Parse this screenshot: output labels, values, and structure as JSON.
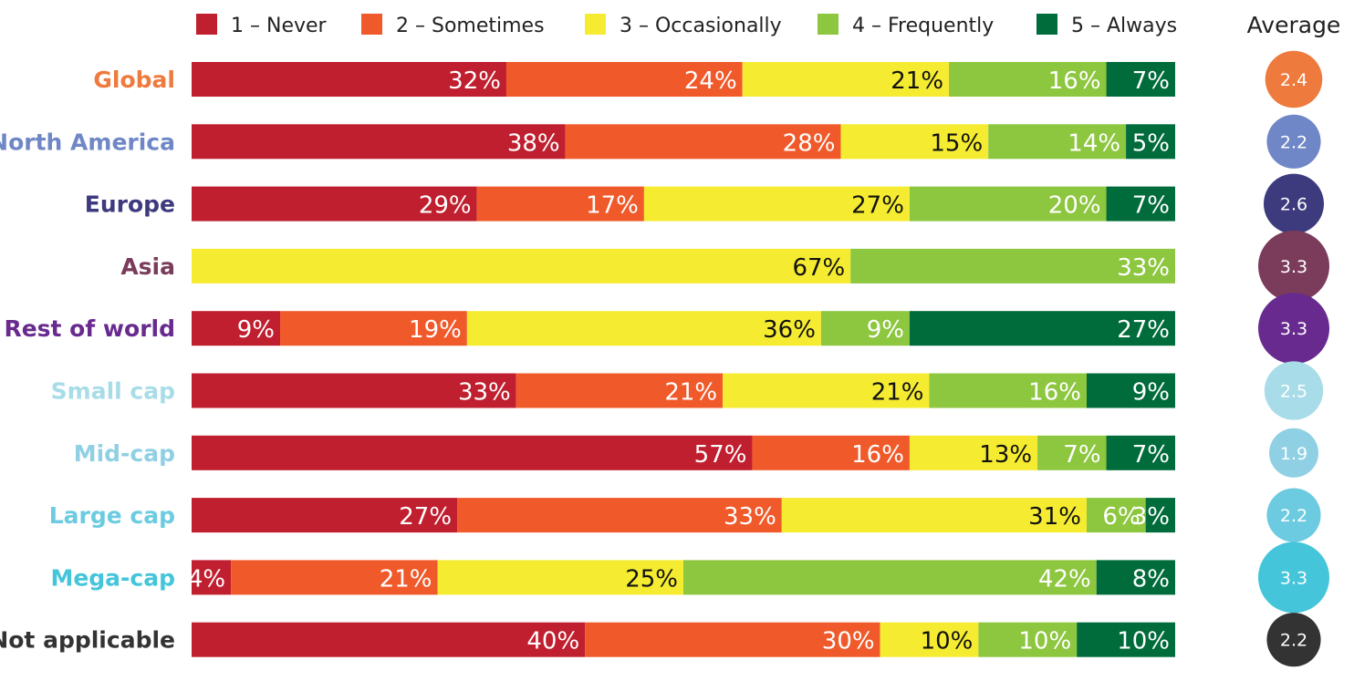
{
  "chart_data": {
    "type": "bar",
    "orientation": "horizontal",
    "stacked": true,
    "percent": true,
    "legend_position": "top",
    "categories": [
      "Global",
      "North America",
      "Europe",
      "Asia",
      "Rest of world",
      "Small cap",
      "Mid-cap",
      "Large cap",
      "Mega-cap",
      "Not applicable"
    ],
    "category_colors": [
      "#ee7a3e",
      "#6f87c6",
      "#3e3a7e",
      "#7b3b5b",
      "#682a8f",
      "#a8dce8",
      "#8fd0e4",
      "#6ccbe0",
      "#45c5da",
      "#333333"
    ],
    "series": [
      {
        "name": "1 – Never",
        "color": "#c01f2f",
        "label_color": "#ffffff",
        "values": [
          32,
          38,
          29,
          0,
          9,
          33,
          57,
          27,
          4,
          40
        ]
      },
      {
        "name": "2 – Sometimes",
        "color": "#f05a2b",
        "label_color": "#ffffff",
        "values": [
          24,
          28,
          17,
          0,
          19,
          21,
          16,
          33,
          21,
          30
        ]
      },
      {
        "name": "3 – Occasionally",
        "color": "#f5ec31",
        "label_color": "#111111",
        "values": [
          21,
          15,
          27,
          67,
          36,
          21,
          13,
          31,
          25,
          10
        ]
      },
      {
        "name": "4 – Frequently",
        "color": "#8dc63f",
        "label_color": "#ffffff",
        "values": [
          16,
          14,
          20,
          33,
          9,
          16,
          7,
          6,
          42,
          10
        ]
      },
      {
        "name": "5 – Always",
        "color": "#006b3b",
        "label_color": "#ffffff",
        "values": [
          7,
          5,
          7,
          0,
          27,
          9,
          7,
          3,
          8,
          10
        ]
      }
    ],
    "outside_label_color": "#006b3b",
    "average": {
      "title": "Average",
      "values": [
        "2.4",
        "2.2",
        "2.6",
        "3.3",
        "3.3",
        "2.5",
        "1.9",
        "2.2",
        "3.3",
        "2.2"
      ],
      "sizes": [
        2.4,
        2.2,
        2.6,
        3.3,
        3.3,
        2.5,
        1.9,
        2.2,
        3.3,
        2.2
      ]
    }
  }
}
